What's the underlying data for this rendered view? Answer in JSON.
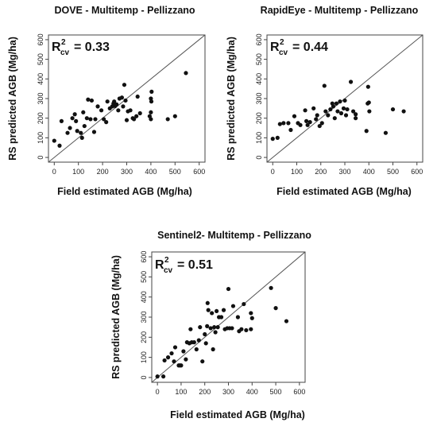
{
  "chart_data": [
    {
      "type": "scatter",
      "title": "DOVE - Multitemp - Pellizzano",
      "xlabel": "Field estimated AGB (Mg/ha)",
      "ylabel": "RS predicted AGB (Mg/ha)",
      "r2": {
        "base": "R",
        "sub": "cv",
        "sup": "2",
        "value": "= 0.33"
      },
      "xlim": [
        0,
        600
      ],
      "ylim": [
        0,
        600
      ],
      "xticks": [
        "0",
        "100",
        "200",
        "300",
        "400",
        "500",
        "600"
      ],
      "yticks": [
        "0",
        "100",
        "200",
        "300",
        "400",
        "500",
        "600"
      ],
      "grid": false,
      "reference_line": "1:1",
      "points": [
        [
          0,
          85
        ],
        [
          22,
          60
        ],
        [
          30,
          185
        ],
        [
          55,
          125
        ],
        [
          65,
          150
        ],
        [
          75,
          200
        ],
        [
          85,
          220
        ],
        [
          90,
          185
        ],
        [
          95,
          135
        ],
        [
          110,
          125
        ],
        [
          115,
          100
        ],
        [
          120,
          230
        ],
        [
          125,
          160
        ],
        [
          135,
          200
        ],
        [
          140,
          295
        ],
        [
          150,
          195
        ],
        [
          155,
          290
        ],
        [
          165,
          130
        ],
        [
          170,
          195
        ],
        [
          180,
          260
        ],
        [
          195,
          240
        ],
        [
          205,
          195
        ],
        [
          215,
          180
        ],
        [
          220,
          285
        ],
        [
          230,
          250
        ],
        [
          240,
          260
        ],
        [
          245,
          275
        ],
        [
          248,
          285
        ],
        [
          252,
          262
        ],
        [
          258,
          270
        ],
        [
          265,
          240
        ],
        [
          270,
          300
        ],
        [
          280,
          305
        ],
        [
          285,
          260
        ],
        [
          290,
          370
        ],
        [
          295,
          290
        ],
        [
          300,
          190
        ],
        [
          305,
          235
        ],
        [
          315,
          240
        ],
        [
          325,
          200
        ],
        [
          330,
          195
        ],
        [
          340,
          210
        ],
        [
          345,
          310
        ],
        [
          355,
          225
        ],
        [
          395,
          210
        ],
        [
          400,
          230
        ],
        [
          400,
          195
        ],
        [
          400,
          300
        ],
        [
          402,
          285
        ],
        [
          403,
          335
        ],
        [
          470,
          195
        ],
        [
          500,
          210
        ],
        [
          545,
          430
        ]
      ]
    },
    {
      "type": "scatter",
      "title": "RapidEye - Multitemp - Pellizzano",
      "xlabel": "Field estimated AGB (Mg/ha)",
      "ylabel": "RS predicted AGB (Mg/ha)",
      "r2": {
        "base": "R",
        "sub": "cv",
        "sup": "2",
        "value": "= 0.44"
      },
      "xlim": [
        0,
        600
      ],
      "ylim": [
        0,
        600
      ],
      "xticks": [
        "0",
        "100",
        "200",
        "300",
        "400",
        "500",
        "600"
      ],
      "yticks": [
        "0",
        "100",
        "200",
        "300",
        "400",
        "500",
        "600"
      ],
      "grid": false,
      "reference_line": "1:1",
      "points": [
        [
          0,
          95
        ],
        [
          20,
          100
        ],
        [
          30,
          170
        ],
        [
          45,
          175
        ],
        [
          65,
          175
        ],
        [
          75,
          140
        ],
        [
          90,
          210
        ],
        [
          105,
          175
        ],
        [
          115,
          165
        ],
        [
          135,
          240
        ],
        [
          140,
          185
        ],
        [
          145,
          165
        ],
        [
          155,
          180
        ],
        [
          170,
          250
        ],
        [
          180,
          195
        ],
        [
          185,
          215
        ],
        [
          195,
          160
        ],
        [
          205,
          175
        ],
        [
          215,
          365
        ],
        [
          220,
          235
        ],
        [
          230,
          215
        ],
        [
          240,
          245
        ],
        [
          248,
          275
        ],
        [
          252,
          260
        ],
        [
          258,
          200
        ],
        [
          265,
          275
        ],
        [
          270,
          235
        ],
        [
          280,
          285
        ],
        [
          285,
          225
        ],
        [
          295,
          250
        ],
        [
          300,
          290
        ],
        [
          305,
          215
        ],
        [
          310,
          245
        ],
        [
          325,
          385
        ],
        [
          335,
          235
        ],
        [
          345,
          200
        ],
        [
          345,
          220
        ],
        [
          390,
          135
        ],
        [
          395,
          275
        ],
        [
          397,
          360
        ],
        [
          400,
          280
        ],
        [
          402,
          235
        ],
        [
          470,
          125
        ],
        [
          500,
          245
        ],
        [
          545,
          235
        ]
      ]
    },
    {
      "type": "scatter",
      "title": "Sentinel2- Multitemp - Pellizzano",
      "xlabel": "Field estimated AGB (Mg/ha)",
      "ylabel": "RS predicted AGB (Mg/ha)",
      "r2": {
        "base": "R",
        "sub": "cv",
        "sup": "2",
        "value": "= 0.51"
      },
      "xlim": [
        0,
        600
      ],
      "ylim": [
        0,
        600
      ],
      "xticks": [
        "0",
        "100",
        "200",
        "300",
        "400",
        "500",
        "600"
      ],
      "yticks": [
        "0",
        "100",
        "200",
        "300",
        "400",
        "500",
        "600"
      ],
      "grid": false,
      "reference_line": "1:1",
      "points": [
        [
          0,
          5
        ],
        [
          25,
          5
        ],
        [
          30,
          85
        ],
        [
          45,
          100
        ],
        [
          60,
          120
        ],
        [
          70,
          80
        ],
        [
          75,
          150
        ],
        [
          90,
          60
        ],
        [
          95,
          60
        ],
        [
          100,
          60
        ],
        [
          110,
          130
        ],
        [
          120,
          90
        ],
        [
          125,
          175
        ],
        [
          135,
          170
        ],
        [
          140,
          240
        ],
        [
          145,
          175
        ],
        [
          155,
          175
        ],
        [
          165,
          140
        ],
        [
          175,
          185
        ],
        [
          180,
          250
        ],
        [
          190,
          80
        ],
        [
          200,
          215
        ],
        [
          205,
          170
        ],
        [
          210,
          255
        ],
        [
          212,
          370
        ],
        [
          215,
          335
        ],
        [
          225,
          245
        ],
        [
          230,
          320
        ],
        [
          235,
          140
        ],
        [
          240,
          250
        ],
        [
          245,
          225
        ],
        [
          250,
          330
        ],
        [
          255,
          250
        ],
        [
          260,
          300
        ],
        [
          270,
          300
        ],
        [
          280,
          335
        ],
        [
          285,
          240
        ],
        [
          295,
          245
        ],
        [
          300,
          440
        ],
        [
          305,
          245
        ],
        [
          315,
          245
        ],
        [
          320,
          355
        ],
        [
          340,
          300
        ],
        [
          345,
          230
        ],
        [
          355,
          240
        ],
        [
          365,
          365
        ],
        [
          375,
          235
        ],
        [
          395,
          240
        ],
        [
          395,
          320
        ],
        [
          400,
          295
        ],
        [
          480,
          445
        ],
        [
          500,
          345
        ],
        [
          545,
          280
        ]
      ]
    }
  ]
}
